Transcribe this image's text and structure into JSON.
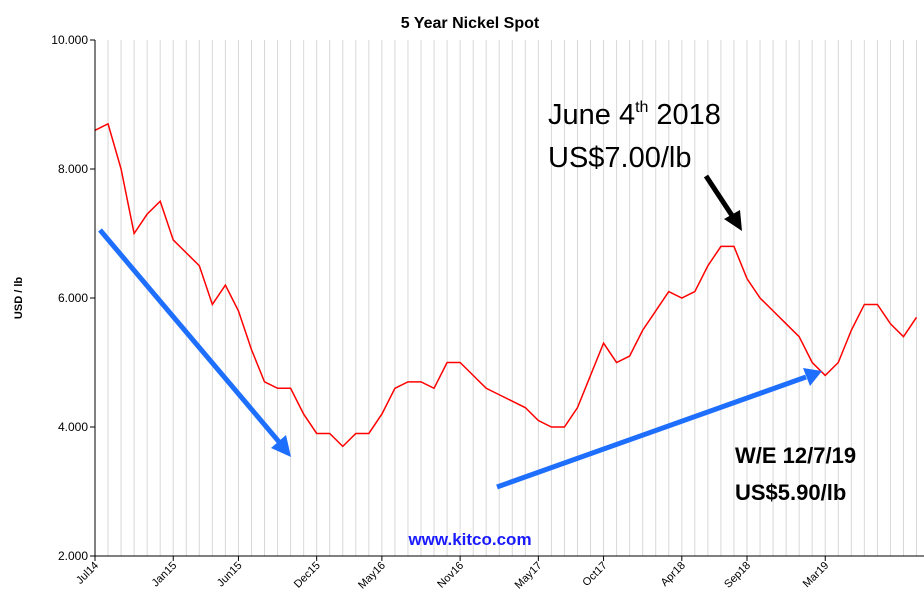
{
  "chart_data": {
    "type": "line",
    "title": "5 Year Nickel Spot",
    "y_label": "USD / lb",
    "watermark": "www.kitco.com",
    "categories": [
      "Jul14",
      null,
      null,
      null,
      null,
      null,
      "Jan15",
      null,
      null,
      null,
      null,
      "Jun15",
      null,
      null,
      null,
      null,
      null,
      "Dec15",
      null,
      null,
      null,
      null,
      "May16",
      null,
      null,
      null,
      null,
      null,
      "Nov16",
      null,
      null,
      null,
      null,
      null,
      "May17",
      null,
      null,
      null,
      null,
      "Oct17",
      null,
      null,
      null,
      null,
      null,
      "Apr18",
      null,
      null,
      null,
      null,
      "Sep18",
      null,
      null,
      null,
      null,
      null,
      "Mar19",
      null,
      null,
      null,
      null,
      null,
      null,
      null
    ],
    "series": [
      {
        "name": "Nickel",
        "color": "#ff0000",
        "values": [
          8.6,
          8.7,
          8.0,
          7.0,
          7.3,
          7.5,
          6.9,
          6.7,
          6.5,
          5.9,
          6.2,
          5.8,
          5.2,
          4.7,
          4.6,
          4.6,
          4.2,
          3.9,
          3.9,
          3.7,
          3.9,
          3.9,
          4.2,
          4.6,
          4.7,
          4.7,
          4.6,
          5.0,
          5.0,
          4.8,
          4.6,
          4.5,
          4.4,
          4.3,
          4.1,
          4.0,
          4.0,
          4.3,
          4.8,
          5.3,
          5.0,
          5.1,
          5.5,
          5.8,
          6.1,
          6.0,
          6.1,
          6.5,
          6.8,
          6.8,
          6.3,
          6.0,
          5.8,
          5.6,
          5.4,
          5.0,
          4.8,
          5.0,
          5.5,
          5.9,
          5.9,
          5.6,
          5.4,
          5.7
        ]
      }
    ],
    "ylim": [
      2,
      10
    ],
    "yticks": [
      {
        "value": 2,
        "label": "2.000"
      },
      {
        "value": 4,
        "label": "4.000"
      },
      {
        "value": 6,
        "label": "6.000"
      },
      {
        "value": 8,
        "label": "8.000"
      },
      {
        "value": 10,
        "label": "10.000"
      }
    ],
    "grid": true,
    "annotations": [
      {
        "parts": [
          "June 4",
          "th",
          "2018"
        ],
        "price": "US$7.00/lb"
      },
      {
        "lines": [
          "W/E 12/7/19",
          "US$5.90/lb"
        ]
      }
    ]
  }
}
